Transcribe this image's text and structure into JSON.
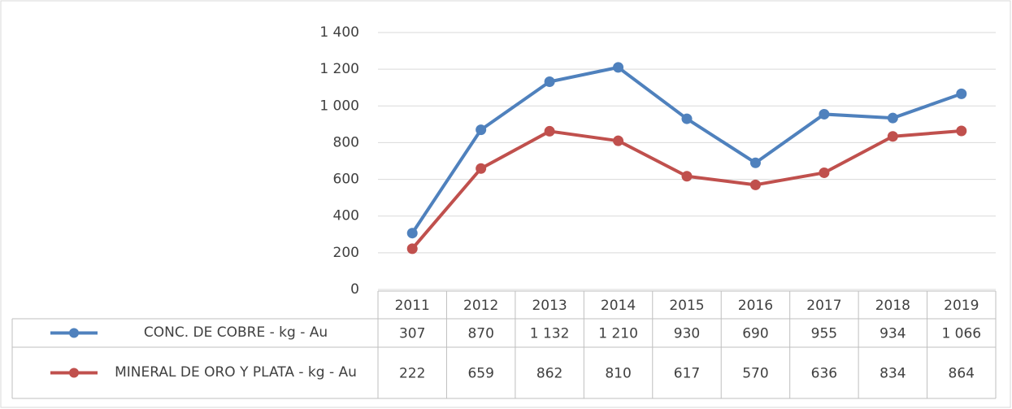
{
  "chart_data": {
    "type": "line",
    "categories": [
      "2011",
      "2012",
      "2013",
      "2014",
      "2015",
      "2016",
      "2017",
      "2018",
      "2019"
    ],
    "series": [
      {
        "name": "CONC. DE COBRE - kg - Au",
        "color": "#4f81bd",
        "values": [
          307,
          870,
          1132,
          1210,
          930,
          690,
          955,
          934,
          1066
        ],
        "value_labels": [
          "307",
          "870",
          "1 132",
          "1 210",
          "930",
          "690",
          "955",
          "934",
          "1 066"
        ]
      },
      {
        "name": "MINERAL DE ORO Y PLATA - kg - Au",
        "color": "#c0504d",
        "values": [
          222,
          659,
          862,
          810,
          617,
          570,
          636,
          834,
          864
        ],
        "value_labels": [
          "222",
          "659",
          "862",
          "810",
          "617",
          "570",
          "636",
          "834",
          "864"
        ]
      }
    ],
    "ylim": [
      0,
      1400
    ],
    "yticks": [
      0,
      200,
      400,
      600,
      800,
      {
        "value": 1000,
        "label": "1 000"
      },
      {
        "value": 1200,
        "label": "1 200"
      },
      {
        "value": 1400,
        "label": "1 400"
      }
    ],
    "grid": true
  }
}
